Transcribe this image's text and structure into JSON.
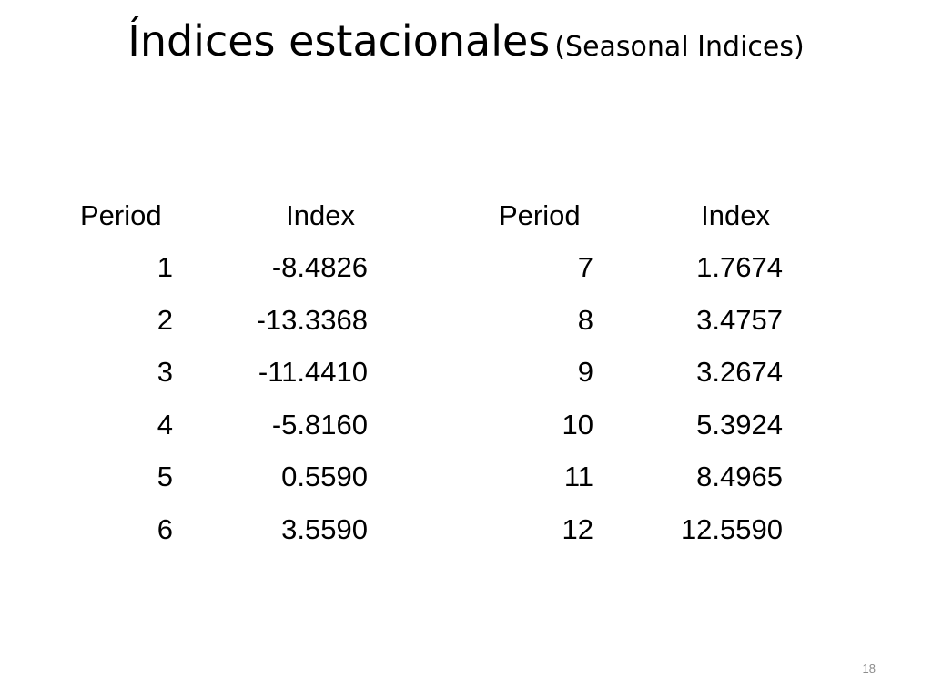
{
  "title": {
    "main": "Índices estacionales",
    "sub": "(Seasonal Indices)"
  },
  "tables": [
    {
      "headers": {
        "period": "Period",
        "index": "Index"
      },
      "rows": [
        {
          "period": "1",
          "index": "-8.4826"
        },
        {
          "period": "2",
          "index": "-13.3368"
        },
        {
          "period": "3",
          "index": "-11.4410"
        },
        {
          "period": "4",
          "index": "-5.8160"
        },
        {
          "period": "5",
          "index": "0.5590"
        },
        {
          "period": "6",
          "index": "3.5590"
        }
      ]
    },
    {
      "headers": {
        "period": "Period",
        "index": "Index"
      },
      "rows": [
        {
          "period": "7",
          "index": "1.7674"
        },
        {
          "period": "8",
          "index": "3.4757"
        },
        {
          "period": "9",
          "index": "3.2674"
        },
        {
          "period": "10",
          "index": "5.3924"
        },
        {
          "period": "11",
          "index": "8.4965"
        },
        {
          "period": "12",
          "index": "12.5590"
        }
      ]
    }
  ],
  "page_number": "18",
  "colors": {
    "text": "#000000",
    "background": "#ffffff",
    "page_number": "#8c8c8c"
  }
}
